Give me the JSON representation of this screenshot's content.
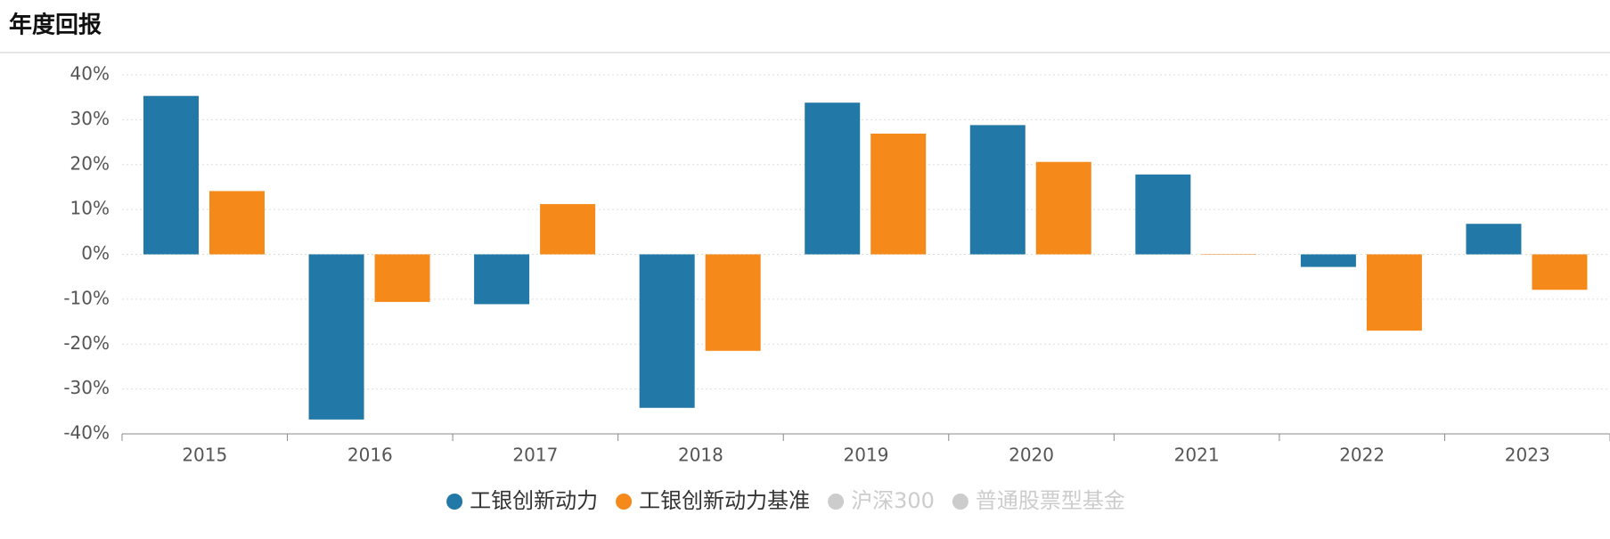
{
  "chart_data": {
    "type": "bar",
    "title": "年度回报",
    "categories": [
      "2015",
      "2016",
      "2017",
      "2018",
      "2019",
      "2020",
      "2021",
      "2022",
      "2023"
    ],
    "series": [
      {
        "name": "工银创新动力",
        "color": "#2278a6",
        "values": [
          35.3,
          -36.8,
          -11.1,
          -34.2,
          33.8,
          28.8,
          17.8,
          -2.8,
          6.8
        ]
      },
      {
        "name": "工银创新动力基准",
        "color": "#f5891a",
        "values": [
          14.1,
          -10.6,
          11.2,
          -21.5,
          26.9,
          20.6,
          0.1,
          -17.0,
          -7.9
        ]
      },
      {
        "name": "沪深300",
        "color": "#cccccc",
        "hidden": true
      },
      {
        "name": "普通股票型基金",
        "color": "#cccccc",
        "hidden": true
      }
    ],
    "ylim": [
      -40,
      40
    ],
    "yticks": [
      {
        "value": -40,
        "label": "-40%"
      },
      {
        "value": -30,
        "label": "-30%"
      },
      {
        "value": -20,
        "label": "-20%"
      },
      {
        "value": -10,
        "label": "-10%"
      },
      {
        "value": 0,
        "label": "0%"
      },
      {
        "value": 10,
        "label": "10%"
      },
      {
        "value": 20,
        "label": "20%"
      },
      {
        "value": 30,
        "label": "30%"
      },
      {
        "value": 40,
        "label": "40%"
      }
    ],
    "grid": true,
    "legend": "bottom"
  }
}
